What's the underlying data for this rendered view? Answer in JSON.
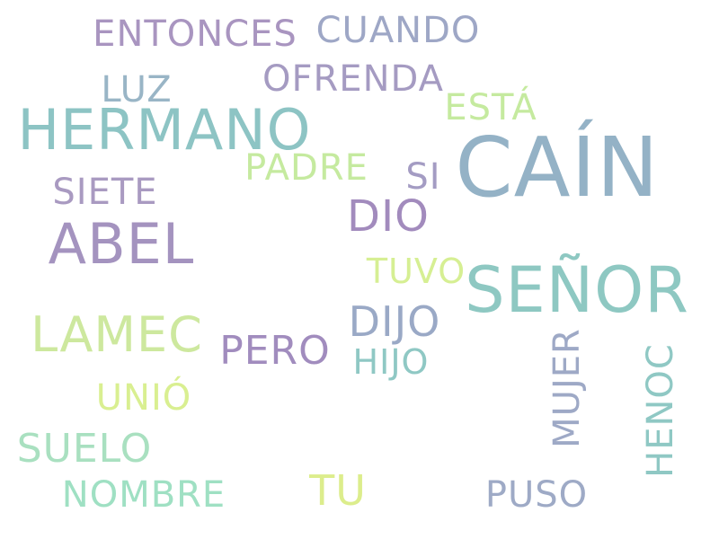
{
  "words": {
    "cain": {
      "text": "CAÍN",
      "color": "#94b2c6"
    },
    "senor": {
      "text": "SEÑOR",
      "color": "#8ec8c2"
    },
    "abel": {
      "text": "ABEL",
      "color": "#a493bf"
    },
    "hermano": {
      "text": "HERMANO",
      "color": "#8dc4c4"
    },
    "lamec": {
      "text": "LAMEC",
      "color": "#cde89e"
    },
    "dio": {
      "text": "DIO",
      "color": "#a28bbd"
    },
    "dijo": {
      "text": "DIJO",
      "color": "#9aa9c6"
    },
    "entonces": {
      "text": "ENTONCES",
      "color": "#a995c0"
    },
    "cuando": {
      "text": "CUANDO",
      "color": "#9ea7c6"
    },
    "ofrenda": {
      "text": "OFRENDA",
      "color": "#a59bc2"
    },
    "pero": {
      "text": "PERO",
      "color": "#a18cbe"
    },
    "suelo": {
      "text": "SUELO",
      "color": "#a9e0c0"
    },
    "luz": {
      "text": "LUZ",
      "color": "#99b5c6"
    },
    "siete": {
      "text": "SIETE",
      "color": "#a99ac1"
    },
    "padre": {
      "text": "PADRE",
      "color": "#c5ea9f"
    },
    "esta": {
      "text": "ESTÁ",
      "color": "#c5ea9f"
    },
    "si": {
      "text": "SI",
      "color": "#a49cc3"
    },
    "tuvo": {
      "text": "TUVO",
      "color": "#d6ef93"
    },
    "hijo": {
      "text": "HIJO",
      "color": "#8fc8c4"
    },
    "unio": {
      "text": "UNIÓ",
      "color": "#d9ef91"
    },
    "nombre": {
      "text": "NOMBRE",
      "color": "#9fe0c3"
    },
    "tu": {
      "text": "TU",
      "color": "#dced8c"
    },
    "puso": {
      "text": "PUSO",
      "color": "#9eaac6"
    },
    "mujer": {
      "text": "MUJER",
      "color": "#9ea9c6"
    },
    "henoc": {
      "text": "HENOC",
      "color": "#8fc8c4"
    }
  }
}
